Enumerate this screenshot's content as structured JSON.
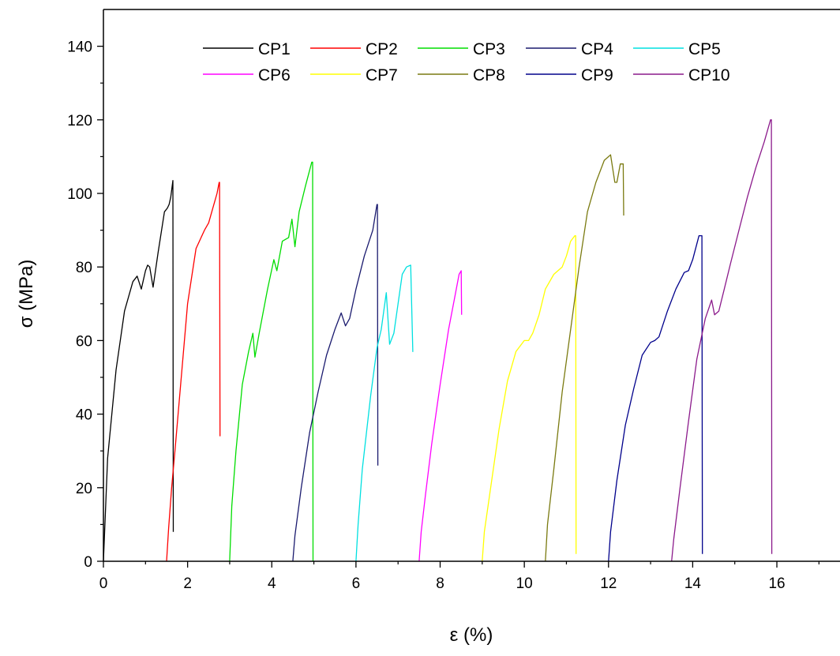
{
  "chart_data": {
    "type": "line",
    "title": "",
    "xlabel": "ε (%)",
    "ylabel": "σ (MPa)",
    "xlim": [
      0,
      17.5
    ],
    "ylim": [
      0,
      150
    ],
    "x_ticks": [
      0,
      2,
      4,
      6,
      8,
      10,
      12,
      14,
      16
    ],
    "y_ticks": [
      0,
      20,
      40,
      60,
      80,
      100,
      120,
      140
    ],
    "grid": false,
    "legend_position": "top-center",
    "series": [
      {
        "name": "CP1",
        "color": "#000000",
        "x": [
          0,
          0.1,
          0.3,
          0.5,
          0.7,
          0.8,
          0.9,
          1.0,
          1.05,
          1.1,
          1.18,
          1.3,
          1.45,
          1.52,
          1.56,
          1.6,
          1.65,
          1.66
        ],
        "y": [
          0,
          28,
          52,
          68,
          76,
          77.5,
          74,
          79,
          80.5,
          80,
          74.5,
          84,
          95,
          96,
          97,
          99,
          103.5,
          8
        ]
      },
      {
        "name": "CP2",
        "color": "#ff0000",
        "x": [
          1.5,
          1.55,
          1.62,
          1.7,
          1.85,
          2.0,
          2.2,
          2.4,
          2.5,
          2.6,
          2.7,
          2.75,
          2.76,
          2.77
        ],
        "y": [
          0,
          9,
          20,
          30,
          50,
          70,
          85,
          90,
          92,
          96,
          100,
          103,
          103,
          34
        ]
      },
      {
        "name": "CP3",
        "color": "#00dd00",
        "x": [
          3.0,
          3.05,
          3.15,
          3.3,
          3.45,
          3.55,
          3.6,
          3.7,
          3.9,
          4.05,
          4.12,
          4.25,
          4.4,
          4.48,
          4.55,
          4.65,
          4.8,
          4.95,
          4.97,
          4.98
        ],
        "y": [
          0,
          15,
          30,
          48,
          57,
          62,
          55.5,
          62,
          74,
          82,
          79,
          87,
          88,
          93,
          85.5,
          95,
          102,
          108.5,
          108.5,
          0
        ]
      },
      {
        "name": "CP4",
        "color": "#1a1a6e",
        "x": [
          4.5,
          4.55,
          4.7,
          4.9,
          5.1,
          5.3,
          5.5,
          5.65,
          5.75,
          5.85,
          6.0,
          6.2,
          6.4,
          6.5,
          6.51,
          6.52
        ],
        "y": [
          0,
          7,
          20,
          35,
          46,
          56,
          63,
          67.5,
          64,
          66,
          74,
          83,
          90,
          97,
          97,
          26
        ]
      },
      {
        "name": "CP5",
        "color": "#00e0e0",
        "x": [
          6.0,
          6.05,
          6.15,
          6.35,
          6.5,
          6.6,
          6.72,
          6.8,
          6.9,
          7.0,
          7.1,
          7.2,
          7.3,
          7.35,
          7.36
        ],
        "y": [
          0,
          10,
          25,
          45,
          58,
          63,
          73,
          59,
          62,
          70,
          78,
          80,
          80.5,
          57,
          57
        ]
      },
      {
        "name": "CP6",
        "color": "#ff00ff",
        "x": [
          7.5,
          7.55,
          7.65,
          7.8,
          8.0,
          8.2,
          8.35,
          8.45,
          8.5,
          8.51
        ],
        "y": [
          0,
          8,
          18,
          32,
          48,
          63,
          72,
          78,
          79,
          67
        ]
      },
      {
        "name": "CP7",
        "color": "#ffff00",
        "x": [
          9.0,
          9.05,
          9.2,
          9.4,
          9.6,
          9.8,
          10.0,
          10.1,
          10.2,
          10.35,
          10.5,
          10.7,
          10.9,
          11.0,
          11.1,
          11.2,
          11.22,
          11.23
        ],
        "y": [
          0,
          8,
          20,
          36,
          49,
          57,
          60,
          60,
          62,
          67,
          74,
          78,
          80,
          83,
          87,
          88.5,
          88.5,
          2
        ]
      },
      {
        "name": "CP8",
        "color": "#7a7a10",
        "x": [
          10.5,
          10.55,
          10.7,
          10.9,
          11.1,
          11.3,
          11.5,
          11.7,
          11.9,
          12.05,
          12.15,
          12.2,
          12.28,
          12.35,
          12.36
        ],
        "y": [
          0,
          10,
          25,
          46,
          63,
          80,
          95,
          103,
          109,
          110.5,
          103,
          103,
          108,
          108,
          94
        ]
      },
      {
        "name": "CP9",
        "color": "#00008b",
        "x": [
          12.0,
          12.05,
          12.2,
          12.4,
          12.6,
          12.8,
          13.0,
          13.1,
          13.2,
          13.4,
          13.6,
          13.8,
          13.9,
          14.0,
          14.15,
          14.22,
          14.23
        ],
        "y": [
          0,
          8,
          22,
          37,
          47,
          56,
          59.5,
          60,
          61,
          68,
          74,
          78.5,
          79,
          82,
          88.5,
          88.5,
          2
        ]
      },
      {
        "name": "CP10",
        "color": "#8b1a8b",
        "x": [
          13.5,
          13.55,
          13.7,
          13.9,
          14.1,
          14.3,
          14.45,
          14.52,
          14.62,
          14.75,
          14.9,
          15.1,
          15.3,
          15.5,
          15.7,
          15.85,
          15.87,
          15.88
        ],
        "y": [
          0,
          6,
          20,
          38,
          55,
          66,
          71,
          67,
          68,
          74,
          81,
          90,
          99,
          107,
          114,
          120,
          120,
          2
        ]
      }
    ]
  }
}
